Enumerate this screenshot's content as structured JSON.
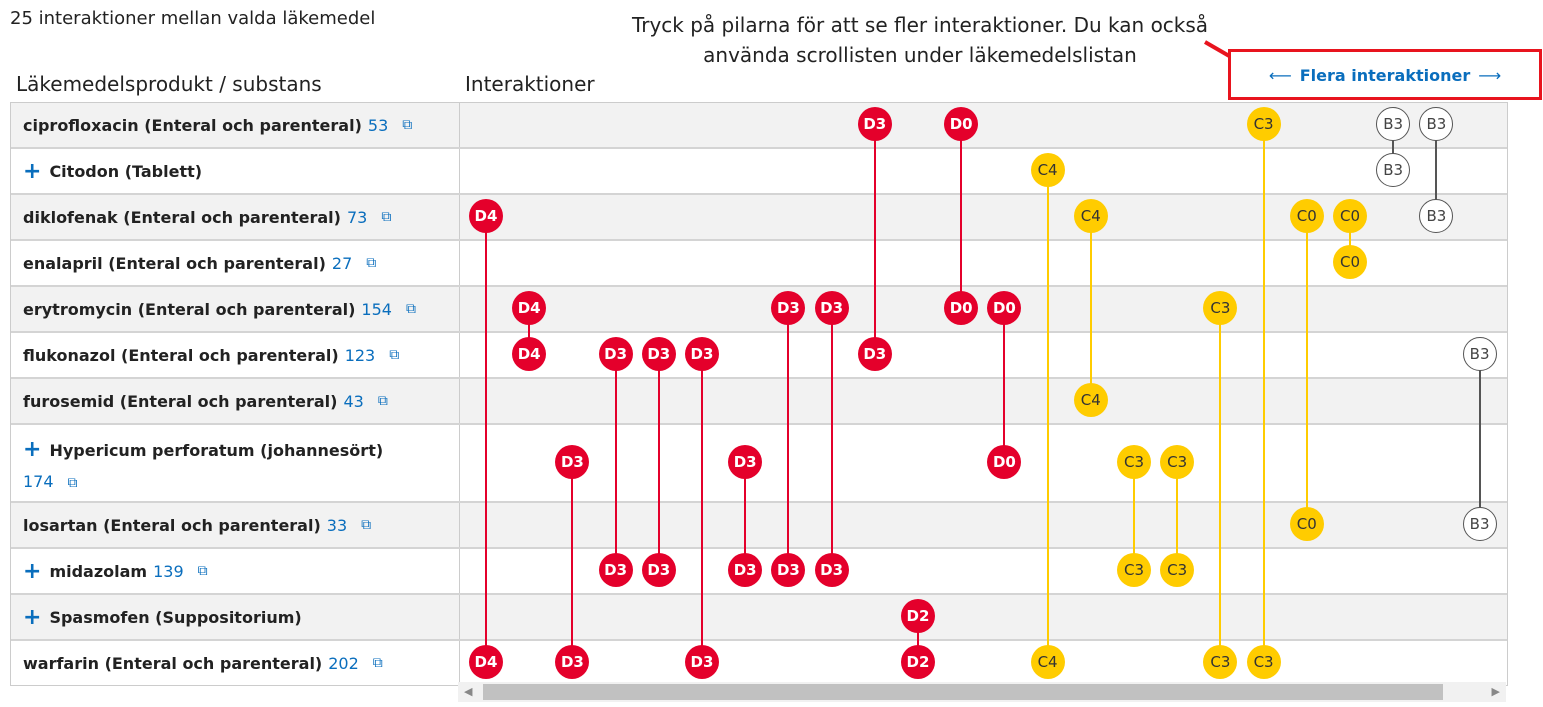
{
  "header": {
    "count_text": "25 interaktioner mellan valda läkemedel",
    "col_products": "Läkemedelsprodukt / substans",
    "col_interactions": "Interaktioner"
  },
  "annotation": {
    "text": "Tryck på pilarna för att se fler interaktioner. Du kan också använda scrollisten under läkemedelslistan"
  },
  "more_button": {
    "label": "Flera interaktioner",
    "left_arrow": "⟵",
    "right_arrow": "⟶"
  },
  "colors": {
    "D": "#e4002b",
    "C": "#ffcc00",
    "B": "#ffffff",
    "highlight": "#e8141e",
    "link": "#0a6ebd"
  },
  "rows": [
    {
      "name": "ciprofloxacin (Enteral och parenteral)",
      "count": "53",
      "expandable": false
    },
    {
      "name": "Citodon (Tablett)",
      "expandable": true
    },
    {
      "name": "diklofenak (Enteral och parenteral)",
      "count": "73",
      "expandable": false
    },
    {
      "name": "enalapril (Enteral och parenteral)",
      "count": "27",
      "expandable": false
    },
    {
      "name": "erytromycin (Enteral och parenteral)",
      "count": "154",
      "expandable": false
    },
    {
      "name": "flukonazol (Enteral och parenteral)",
      "count": "123",
      "expandable": false
    },
    {
      "name": "furosemid (Enteral och parenteral)",
      "count": "43",
      "expandable": false
    },
    {
      "name": "Hypericum perforatum (johannesört)",
      "count": "174",
      "expandable": true,
      "tall": true
    },
    {
      "name": "losartan (Enteral och parenteral)",
      "count": "33",
      "expandable": false
    },
    {
      "name": "midazolam",
      "count": "139",
      "expandable": true
    },
    {
      "name": "Spasmofen (Suppositorium)",
      "expandable": true
    },
    {
      "name": "warfarin (Enteral och parenteral)",
      "count": "202",
      "expandable": false
    }
  ],
  "interactions": [
    {
      "code": "D4",
      "rows": [
        2,
        11
      ]
    },
    {
      "code": "D4",
      "rows": [
        4,
        5
      ]
    },
    {
      "code": "D3",
      "rows": [
        7,
        11
      ]
    },
    {
      "code": "D3",
      "rows": [
        5,
        9
      ]
    },
    {
      "code": "D3",
      "rows": [
        5,
        9
      ]
    },
    {
      "code": "D3",
      "rows": [
        5,
        11
      ]
    },
    {
      "code": "D3",
      "rows": [
        7,
        9
      ]
    },
    {
      "code": "D3",
      "rows": [
        4,
        9
      ]
    },
    {
      "code": "D3",
      "rows": [
        4,
        9
      ]
    },
    {
      "code": "D3",
      "rows": [
        0,
        5
      ]
    },
    {
      "code": "D2",
      "rows": [
        10,
        11
      ]
    },
    {
      "code": "D0",
      "rows": [
        0,
        4
      ]
    },
    {
      "code": "D0",
      "rows": [
        4,
        7
      ]
    },
    {
      "code": "C4",
      "rows": [
        1,
        11
      ]
    },
    {
      "code": "C4",
      "rows": [
        2,
        6
      ]
    },
    {
      "code": "C3",
      "rows": [
        7,
        9
      ]
    },
    {
      "code": "C3",
      "rows": [
        7,
        9
      ]
    },
    {
      "code": "C3",
      "rows": [
        4,
        11
      ]
    },
    {
      "code": "C3",
      "rows": [
        0,
        11
      ]
    },
    {
      "code": "C0",
      "rows": [
        2,
        8
      ]
    },
    {
      "code": "C0",
      "rows": [
        2,
        3
      ]
    },
    {
      "code": "B3",
      "rows": [
        0,
        1
      ]
    },
    {
      "code": "B3",
      "rows": [
        0,
        2
      ]
    },
    {
      "code": "B3",
      "rows": [
        5,
        8
      ]
    },
    {
      "code": "B3",
      "rows": [
        1,
        2
      ]
    }
  ]
}
